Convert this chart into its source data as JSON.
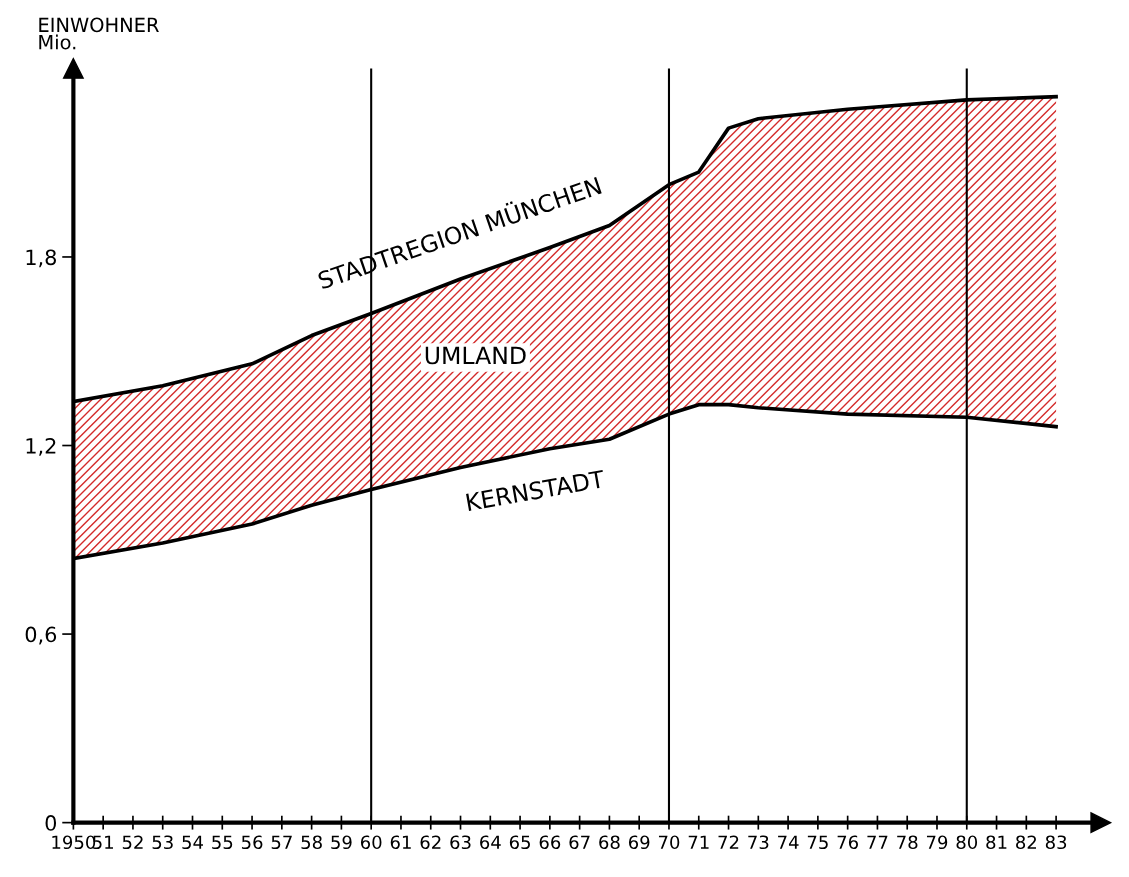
{
  "chart_data": {
    "type": "area",
    "stacked": true,
    "x": [
      1950,
      1953,
      1956,
      1958,
      1960,
      1963,
      1966,
      1968,
      1970,
      1971,
      1972,
      1973,
      1976,
      1980,
      1983
    ],
    "series": [
      {
        "name": "KERNSTADT",
        "color": "#ffffff",
        "values": [
          0.84,
          0.89,
          0.95,
          1.01,
          1.06,
          1.13,
          1.19,
          1.22,
          1.3,
          1.33,
          1.33,
          1.32,
          1.3,
          1.29,
          1.26
        ]
      },
      {
        "name": "UMLAND",
        "color": "#d42a2a",
        "values": [
          0.5,
          0.5,
          0.51,
          0.54,
          0.56,
          0.6,
          0.64,
          0.68,
          0.73,
          0.74,
          0.88,
          0.92,
          0.97,
          1.01,
          1.05
        ]
      }
    ],
    "ylabel": "EINWOHNER\nMio.",
    "annotations": [
      {
        "text": "STADTREGION MÜNCHEN",
        "x": 1963,
        "y": 1.73
      }
    ],
    "xlim": [
      1950,
      1984.5
    ],
    "ylim": [
      0,
      2.4
    ],
    "xticks": [
      {
        "value": 1950,
        "label": "1950"
      },
      {
        "value": 1951,
        "label": "51"
      },
      {
        "value": 1952,
        "label": "52"
      },
      {
        "value": 1953,
        "label": "53"
      },
      {
        "value": 1954,
        "label": "54"
      },
      {
        "value": 1955,
        "label": "55"
      },
      {
        "value": 1956,
        "label": "56"
      },
      {
        "value": 1957,
        "label": "57"
      },
      {
        "value": 1958,
        "label": "58"
      },
      {
        "value": 1959,
        "label": "59"
      },
      {
        "value": 1960,
        "label": "60"
      },
      {
        "value": 1961,
        "label": "61"
      },
      {
        "value": 1962,
        "label": "62"
      },
      {
        "value": 1963,
        "label": "63"
      },
      {
        "value": 1964,
        "label": "64"
      },
      {
        "value": 1965,
        "label": "65"
      },
      {
        "value": 1966,
        "label": "66"
      },
      {
        "value": 1967,
        "label": "67"
      },
      {
        "value": 1968,
        "label": "68"
      },
      {
        "value": 1969,
        "label": "69"
      },
      {
        "value": 1970,
        "label": "70"
      },
      {
        "value": 1971,
        "label": "71"
      },
      {
        "value": 1972,
        "label": "72"
      },
      {
        "value": 1973,
        "label": "73"
      },
      {
        "value": 1974,
        "label": "74"
      },
      {
        "value": 1975,
        "label": "75"
      },
      {
        "value": 1976,
        "label": "76"
      },
      {
        "value": 1977,
        "label": "77"
      },
      {
        "value": 1978,
        "label": "78"
      },
      {
        "value": 1979,
        "label": "79"
      },
      {
        "value": 1980,
        "label": "80"
      },
      {
        "value": 1981,
        "label": "81"
      },
      {
        "value": 1982,
        "label": "82"
      },
      {
        "value": 1983,
        "label": "83"
      }
    ],
    "yticks": [
      0,
      {
        "value": 0.6,
        "label": "0,6"
      },
      {
        "value": 1.2,
        "label": "1,2"
      },
      {
        "value": 1.8,
        "label": "1,8"
      }
    ],
    "ref_lines": [
      {
        "axis": "x",
        "value": 1960,
        "color": "#000000"
      },
      {
        "axis": "x",
        "value": 1970,
        "color": "#000000"
      },
      {
        "axis": "x",
        "value": 1980,
        "color": "#000000"
      }
    ]
  }
}
